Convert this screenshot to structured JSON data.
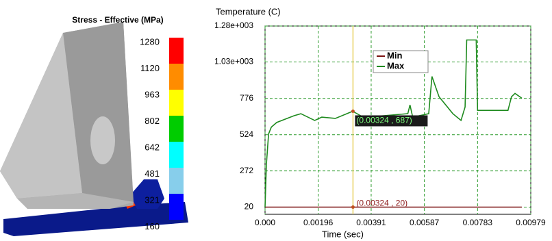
{
  "chart_data": {
    "type": "line",
    "y_axis_label": "Temperature (C)",
    "x_axis_label": "Time (sec)",
    "xlim": [
      0,
      0.00979
    ],
    "ylim": [
      -30,
      1280
    ],
    "xticks": [
      {
        "value": 0,
        "label": "0.000"
      },
      {
        "value": 0.00196,
        "label": "0.00196"
      },
      {
        "value": 0.00391,
        "label": "0.00391"
      },
      {
        "value": 0.00587,
        "label": "0.00587"
      },
      {
        "value": 0.00783,
        "label": "0.00783"
      },
      {
        "value": 0.00979,
        "label": "0.00979"
      }
    ],
    "yticks": [
      20,
      272,
      524,
      776,
      {
        "value": 1030,
        "label": "1.03e+003"
      },
      {
        "value": 1280,
        "label": "1.28e+003"
      }
    ],
    "grid": true,
    "cursor_x": 0.00324,
    "series": [
      {
        "name": "Min",
        "color": "#7a1010",
        "x": [
          0,
          0.00946
        ],
        "values": [
          20,
          20
        ]
      },
      {
        "name": "Max",
        "color": "#1e8a1e",
        "x": [
          0,
          5e-05,
          0.00013,
          0.00023,
          0.00043,
          0.00081,
          0.00107,
          0.00132,
          0.00183,
          0.00209,
          0.00259,
          0.00323,
          0.00361,
          0.00437,
          0.00526,
          0.00534,
          0.00544,
          0.00603,
          0.00615,
          0.00641,
          0.00692,
          0.00722,
          0.00737,
          0.00743,
          0.00778,
          0.00783,
          0.00895,
          0.00908,
          0.00921,
          0.00946
        ],
        "values": [
          20,
          317,
          529,
          576,
          609,
          637,
          656,
          670,
          623,
          646,
          637,
          687,
          646,
          656,
          670,
          731,
          646,
          670,
          929,
          788,
          670,
          623,
          717,
          1183,
          1183,
          693,
          693,
          788,
          811,
          778
        ]
      }
    ],
    "annotations": [
      {
        "text": "(0.00324 , 687)",
        "x": 0.00324,
        "y": 687
      },
      {
        "text": "(0.00324 , 20)",
        "x": 0.00324,
        "y": 20
      }
    ]
  },
  "colorbar": {
    "title": "Stress - Effective (MPa)",
    "labels": [
      "1280",
      "1120",
      "963",
      "802",
      "642",
      "481",
      "321",
      "160"
    ],
    "colors": [
      "#ff0000",
      "#ff8c00",
      "#ffff00",
      "#00cc00",
      "#00ffff",
      "#87ceeb",
      "#0000ff"
    ]
  }
}
